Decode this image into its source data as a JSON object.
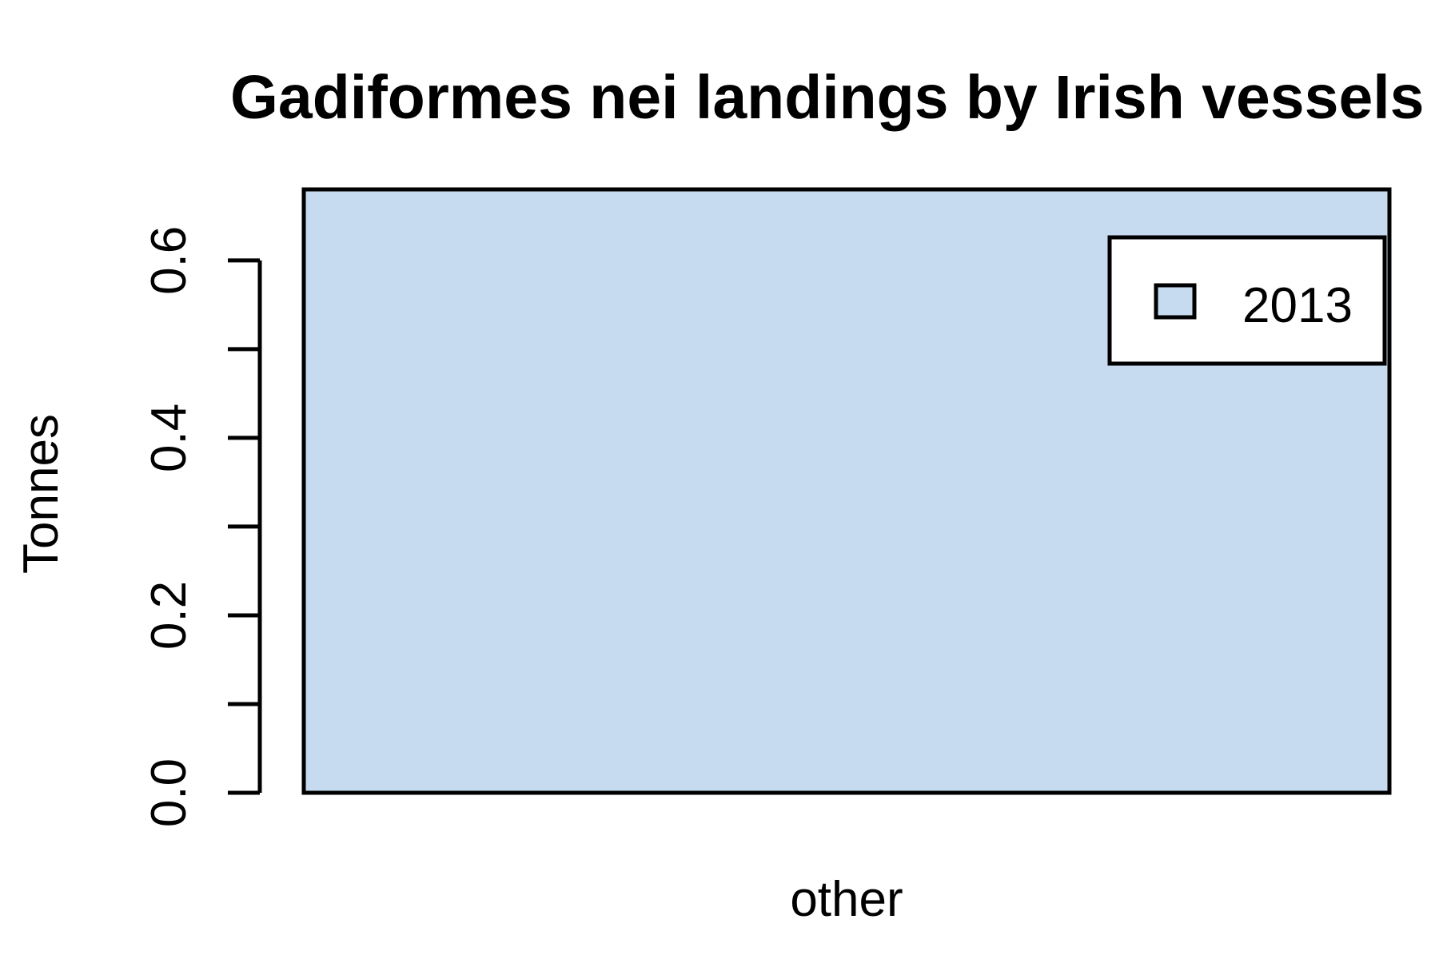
{
  "chart_data": {
    "type": "bar",
    "title": "Gadiformes nei landings by Irish vessels",
    "ylabel": "Tonnes",
    "categories": [
      "other"
    ],
    "series": [
      {
        "name": "2013",
        "values": [
          0.68
        ],
        "color": "#C6DBEF"
      }
    ],
    "ylim": [
      0,
      0.68
    ],
    "yticks": [
      0.0,
      0.1,
      0.2,
      0.3,
      0.4,
      0.5,
      0.6
    ],
    "yticklabels": [
      "0.0",
      "",
      "0.2",
      "",
      "0.4",
      "",
      "0.6"
    ],
    "legend_position": "top-right",
    "grid": false
  }
}
